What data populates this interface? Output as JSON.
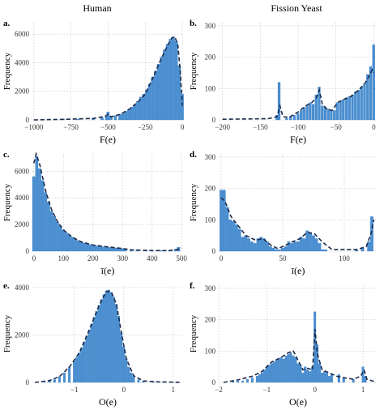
{
  "columns": [
    "Human",
    "Fission Yeast"
  ],
  "chart_data": [
    {
      "id": "a",
      "letter": "a.",
      "type": "bar",
      "column": "Human",
      "xlabel": "F(e)",
      "ylabel": "Frequency",
      "xlim": [
        -1010,
        5
      ],
      "ylim": [
        0,
        6800
      ],
      "xticks": [
        -1000,
        -750,
        -500,
        -250,
        0
      ],
      "yticks": [
        0,
        2000,
        4000,
        6000
      ],
      "bin_width": 20,
      "x": [
        -1000,
        -960,
        -900,
        -800,
        -700,
        -600,
        -540,
        -510,
        -500,
        -480,
        -450,
        -420,
        -400,
        -380,
        -360,
        -340,
        -320,
        -300,
        -280,
        -260,
        -240,
        -220,
        -200,
        -180,
        -160,
        -140,
        -120,
        -100,
        -80,
        -60,
        -40,
        -20,
        0
      ],
      "values": [
        0,
        0,
        30,
        40,
        60,
        90,
        150,
        300,
        550,
        250,
        300,
        380,
        450,
        600,
        700,
        900,
        1050,
        1300,
        1600,
        1800,
        2100,
        2500,
        3000,
        3400,
        3900,
        4400,
        4900,
        5300,
        5650,
        5800,
        5500,
        3800,
        1800
      ],
      "kde": [
        [
          -1000,
          0
        ],
        [
          -800,
          40
        ],
        [
          -600,
          100
        ],
        [
          -520,
          250
        ],
        [
          -500,
          400
        ],
        [
          -480,
          220
        ],
        [
          -420,
          380
        ],
        [
          -350,
          800
        ],
        [
          -300,
          1250
        ],
        [
          -250,
          1800
        ],
        [
          -200,
          2900
        ],
        [
          -150,
          4100
        ],
        [
          -100,
          5200
        ],
        [
          -70,
          5750
        ],
        [
          -50,
          5800
        ],
        [
          -30,
          5200
        ],
        [
          -15,
          3500
        ],
        [
          0,
          1000
        ]
      ]
    },
    {
      "id": "b",
      "letter": "b.",
      "type": "bar",
      "column": "Fission Yeast",
      "xlabel": "F(e)",
      "ylabel": "Frequency",
      "xlim": [
        -205,
        5
      ],
      "ylim": [
        0,
        310
      ],
      "xticks": [
        -200,
        -150,
        -100,
        -50,
        0
      ],
      "yticks": [
        0,
        100,
        200,
        300
      ],
      "bin_width": 3.5,
      "x": [
        -128,
        -125,
        -115,
        -110,
        -105,
        -100,
        -96,
        -92,
        -88,
        -84,
        -80,
        -76,
        -72,
        -68,
        -64,
        -60,
        -56,
        -52,
        -48,
        -44,
        -40,
        -36,
        -32,
        -28,
        -24,
        -20,
        -16,
        -12,
        -8,
        -4,
        0
      ],
      "values": [
        15,
        120,
        5,
        10,
        15,
        20,
        30,
        40,
        45,
        55,
        50,
        80,
        105,
        45,
        40,
        35,
        30,
        30,
        55,
        60,
        65,
        70,
        75,
        80,
        90,
        95,
        105,
        115,
        145,
        170,
        240
      ],
      "kde": [
        [
          -200,
          2
        ],
        [
          -140,
          4
        ],
        [
          -128,
          10
        ],
        [
          -124,
          45
        ],
        [
          -120,
          10
        ],
        [
          -112,
          8
        ],
        [
          -100,
          25
        ],
        [
          -90,
          45
        ],
        [
          -82,
          55
        ],
        [
          -76,
          70
        ],
        [
          -72,
          95
        ],
        [
          -68,
          50
        ],
        [
          -62,
          35
        ],
        [
          -55,
          30
        ],
        [
          -48,
          55
        ],
        [
          -40,
          65
        ],
        [
          -30,
          75
        ],
        [
          -20,
          95
        ],
        [
          -12,
          115
        ],
        [
          -6,
          140
        ],
        [
          -2,
          160
        ],
        [
          0,
          150
        ]
      ]
    },
    {
      "id": "c",
      "letter": "c.",
      "type": "bar",
      "column": "Human",
      "xlabel": "ī(e)",
      "ylabel": "Frequency",
      "xlim": [
        -5,
        505
      ],
      "ylim": [
        0,
        7300
      ],
      "xticks": [
        0,
        100,
        200,
        300,
        400,
        500
      ],
      "yticks": [
        0,
        2000,
        4000,
        6000
      ],
      "bin_width": 10,
      "x": [
        0,
        10,
        20,
        30,
        40,
        50,
        60,
        70,
        80,
        90,
        100,
        110,
        120,
        130,
        140,
        150,
        160,
        170,
        180,
        190,
        200,
        210,
        220,
        230,
        240,
        250,
        260,
        270,
        280,
        290,
        300,
        310,
        330,
        350,
        380,
        400,
        430,
        460,
        480,
        490
      ],
      "values": [
        5600,
        7100,
        6200,
        5300,
        4400,
        3700,
        3000,
        2600,
        2200,
        1900,
        1600,
        1400,
        1200,
        1050,
        900,
        800,
        700,
        620,
        560,
        500,
        450,
        420,
        380,
        350,
        320,
        300,
        280,
        260,
        240,
        220,
        200,
        150,
        120,
        100,
        80,
        60,
        50,
        60,
        150,
        300
      ],
      "kde": [
        [
          0,
          6600
        ],
        [
          8,
          7300
        ],
        [
          20,
          6500
        ],
        [
          40,
          4500
        ],
        [
          60,
          3100
        ],
        [
          80,
          2200
        ],
        [
          100,
          1600
        ],
        [
          130,
          1050
        ],
        [
          160,
          700
        ],
        [
          200,
          460
        ],
        [
          250,
          320
        ],
        [
          300,
          200
        ],
        [
          330,
          100
        ],
        [
          400,
          40
        ],
        [
          460,
          40
        ],
        [
          490,
          150
        ],
        [
          500,
          250
        ]
      ]
    },
    {
      "id": "d",
      "letter": "d.",
      "type": "bar",
      "column": "Fission Yeast",
      "xlabel": "ī(e)",
      "ylabel": "Frequency",
      "xlim": [
        -2,
        127
      ],
      "ylim": [
        0,
        310
      ],
      "xticks": [
        0,
        50,
        100
      ],
      "yticks": [
        0,
        100,
        200,
        300
      ],
      "bin_width": 2.5,
      "x": [
        0,
        2.5,
        5,
        7.5,
        10,
        12.5,
        15,
        17.5,
        20,
        22.5,
        25,
        27.5,
        30,
        32.5,
        35,
        37.5,
        40,
        42.5,
        45,
        47.5,
        50,
        52.5,
        55,
        57.5,
        60,
        62.5,
        65,
        67.5,
        70,
        72.5,
        75,
        77.5,
        80,
        82.5,
        85,
        110,
        115,
        120,
        122.5
      ],
      "values": [
        195,
        195,
        140,
        100,
        95,
        85,
        70,
        45,
        50,
        40,
        30,
        25,
        40,
        45,
        40,
        30,
        15,
        10,
        5,
        5,
        10,
        15,
        30,
        25,
        30,
        30,
        45,
        40,
        65,
        60,
        50,
        40,
        25,
        5,
        5,
        5,
        10,
        30,
        110
      ],
      "kde": [
        [
          0,
          170
        ],
        [
          3,
          160
        ],
        [
          8,
          110
        ],
        [
          14,
          80
        ],
        [
          20,
          50
        ],
        [
          28,
          35
        ],
        [
          34,
          40
        ],
        [
          40,
          20
        ],
        [
          46,
          8
        ],
        [
          52,
          18
        ],
        [
          58,
          30
        ],
        [
          64,
          40
        ],
        [
          70,
          60
        ],
        [
          76,
          55
        ],
        [
          82,
          30
        ],
        [
          90,
          5
        ],
        [
          110,
          5
        ],
        [
          118,
          15
        ],
        [
          122,
          60
        ],
        [
          124,
          100
        ]
      ]
    },
    {
      "id": "e",
      "letter": "e.",
      "type": "bar",
      "column": "Human",
      "xlabel": "O(e)",
      "ylabel": "Frequency",
      "xlim": [
        -1.85,
        1.2
      ],
      "ylim": [
        0,
        4100
      ],
      "xticks": [
        -1,
        0,
        1
      ],
      "yticks": [
        0,
        2000,
        4000,
        6000
      ],
      "bin_width": 0.05,
      "x": [
        -1.6,
        -1.5,
        -1.4,
        -1.3,
        -1.2,
        -1.1,
        -1.0,
        -0.95,
        -0.9,
        -0.85,
        -0.8,
        -0.75,
        -0.7,
        -0.65,
        -0.6,
        -0.55,
        -0.5,
        -0.45,
        -0.4,
        -0.35,
        -0.3,
        -0.25,
        -0.2,
        -0.15,
        -0.1,
        -0.05,
        0.0,
        0.05,
        0.1,
        0.15,
        0.2,
        0.3,
        0.4,
        0.6,
        0.8,
        1.0
      ],
      "values": [
        20,
        60,
        120,
        250,
        400,
        650,
        900,
        1050,
        1250,
        1450,
        1700,
        1950,
        2200,
        2450,
        2750,
        3000,
        3250,
        3500,
        3700,
        3850,
        3900,
        3800,
        3600,
        3300,
        2800,
        2100,
        1500,
        1000,
        650,
        400,
        250,
        120,
        60,
        30,
        20,
        10
      ],
      "kde": [
        [
          -1.8,
          0
        ],
        [
          -1.5,
          80
        ],
        [
          -1.3,
          250
        ],
        [
          -1.1,
          650
        ],
        [
          -0.9,
          1250
        ],
        [
          -0.7,
          2200
        ],
        [
          -0.5,
          3250
        ],
        [
          -0.35,
          3850
        ],
        [
          -0.25,
          3800
        ],
        [
          -0.15,
          3300
        ],
        [
          -0.05,
          2100
        ],
        [
          0.05,
          1000
        ],
        [
          0.2,
          280
        ],
        [
          0.4,
          60
        ],
        [
          0.7,
          20
        ],
        [
          1.0,
          10
        ],
        [
          1.15,
          5
        ]
      ]
    },
    {
      "id": "f",
      "letter": "f.",
      "type": "bar",
      "column": "Fission Yeast",
      "xlabel": "O(e)",
      "ylabel": "Frequency",
      "xlim": [
        -2.0,
        1.3
      ],
      "ylim": [
        0,
        310
      ],
      "xticks": [
        -2,
        -1,
        0,
        1
      ],
      "yticks": [
        0,
        100,
        200,
        300
      ],
      "bin_width": 0.05,
      "x": [
        -1.7,
        -1.6,
        -1.5,
        -1.4,
        -1.3,
        -1.2,
        -1.15,
        -1.1,
        -1.05,
        -1.0,
        -0.95,
        -0.9,
        -0.85,
        -0.8,
        -0.75,
        -0.7,
        -0.65,
        -0.6,
        -0.55,
        -0.5,
        -0.45,
        -0.4,
        -0.35,
        -0.3,
        -0.25,
        -0.2,
        -0.15,
        -0.1,
        -0.05,
        0.0,
        0.05,
        0.1,
        0.15,
        0.2,
        0.25,
        0.3,
        0.35,
        0.5,
        0.6,
        0.8,
        1.0,
        1.05
      ],
      "values": [
        5,
        5,
        5,
        10,
        15,
        20,
        25,
        30,
        40,
        50,
        55,
        60,
        65,
        70,
        75,
        80,
        75,
        85,
        90,
        95,
        85,
        80,
        60,
        55,
        30,
        50,
        40,
        35,
        50,
        225,
        120,
        60,
        30,
        35,
        30,
        20,
        25,
        25,
        15,
        10,
        50,
        20
      ],
      "kde": [
        [
          -1.9,
          0
        ],
        [
          -1.6,
          8
        ],
        [
          -1.3,
          20
        ],
        [
          -1.1,
          35
        ],
        [
          -0.9,
          65
        ],
        [
          -0.7,
          80
        ],
        [
          -0.55,
          95
        ],
        [
          -0.45,
          100
        ],
        [
          -0.35,
          70
        ],
        [
          -0.25,
          40
        ],
        [
          -0.15,
          45
        ],
        [
          -0.05,
          40
        ],
        [
          0.0,
          170
        ],
        [
          0.05,
          90
        ],
        [
          0.15,
          40
        ],
        [
          0.3,
          30
        ],
        [
          0.45,
          20
        ],
        [
          0.6,
          15
        ],
        [
          0.8,
          10
        ],
        [
          0.95,
          20
        ],
        [
          1.02,
          40
        ],
        [
          1.08,
          10
        ],
        [
          1.25,
          2
        ]
      ]
    }
  ]
}
